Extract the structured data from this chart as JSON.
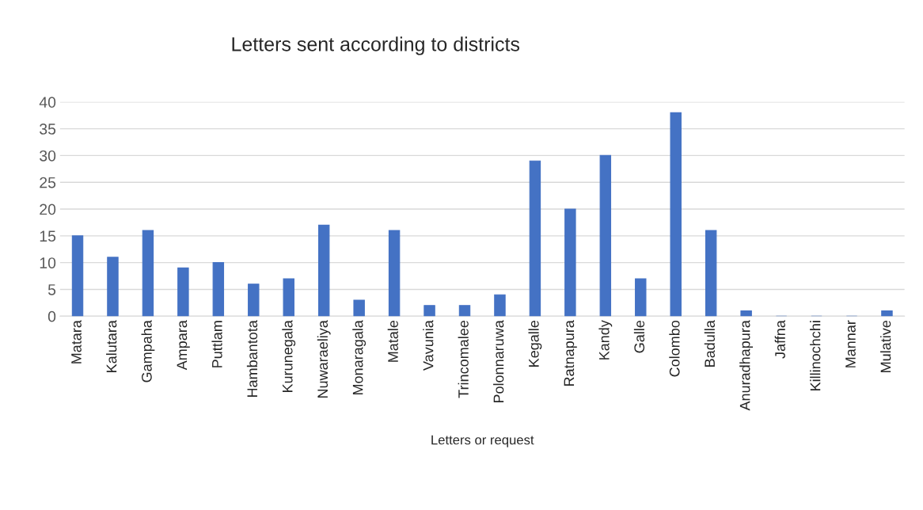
{
  "chart_data": {
    "type": "bar",
    "title": "Letters sent according to districts",
    "xlabel": "Letters or request",
    "categories": [
      "Matara",
      "Kalutara",
      "Gampaha",
      "Ampara",
      "Puttlam",
      "Hambantota",
      "Kurunegala",
      "Nuwaraeliya",
      "Monaragala",
      "Matale",
      "Vavunia",
      "Trincomalee",
      "Polonnaruwa",
      "Kegalle",
      "Ratnapura",
      "Kandy",
      "Galle",
      "Colombo",
      "Badulla",
      "Anuradhapura",
      "Jaffna",
      "Killinochchi",
      "Mannar",
      "Mulative"
    ],
    "values": [
      15,
      11,
      16,
      9,
      10,
      6,
      7,
      17,
      3,
      16,
      2,
      2,
      4,
      29,
      20,
      30,
      7,
      38,
      16,
      1,
      0,
      0,
      0,
      1
    ],
    "color": "#4472c4",
    "ylim": [
      0,
      40
    ],
    "yticks": [
      0,
      5,
      10,
      15,
      20,
      25,
      30,
      35,
      40
    ],
    "grid": "y"
  }
}
